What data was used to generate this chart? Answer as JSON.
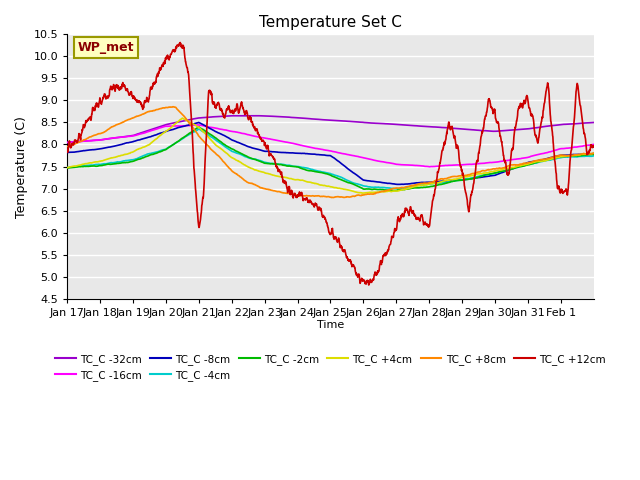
{
  "title": "Temperature Set C",
  "xlabel": "Time",
  "ylabel": "Temperature (C)",
  "ylim": [
    4.5,
    10.5
  ],
  "yticks": [
    4.5,
    5.0,
    5.5,
    6.0,
    6.5,
    7.0,
    7.5,
    8.0,
    8.5,
    9.0,
    9.5,
    10.0,
    10.5
  ],
  "wp_met_label": "WP_met",
  "tick_labels": [
    "Jan 17",
    "Jan 18",
    "Jan 19",
    "Jan 20",
    "Jan 21",
    "Jan 22",
    "Jan 23",
    "Jan 24",
    "Jan 25",
    "Jan 26",
    "Jan 27",
    "Jan 28",
    "Jan 29",
    "Jan 30",
    "Jan 31",
    "Feb 1"
  ],
  "bg_color": "#E8E8E8",
  "grid_color": "#FFFFFF",
  "colors": {
    "TC_C -32cm": "#9900CC",
    "TC_C -16cm": "#FF00FF",
    "TC_C -8cm": "#0000BB",
    "TC_C -4cm": "#00CCCC",
    "TC_C -2cm": "#00BB00",
    "TC_C +4cm": "#DDDD00",
    "TC_C +8cm": "#FF8800",
    "TC_C +12cm": "#CC0000"
  }
}
